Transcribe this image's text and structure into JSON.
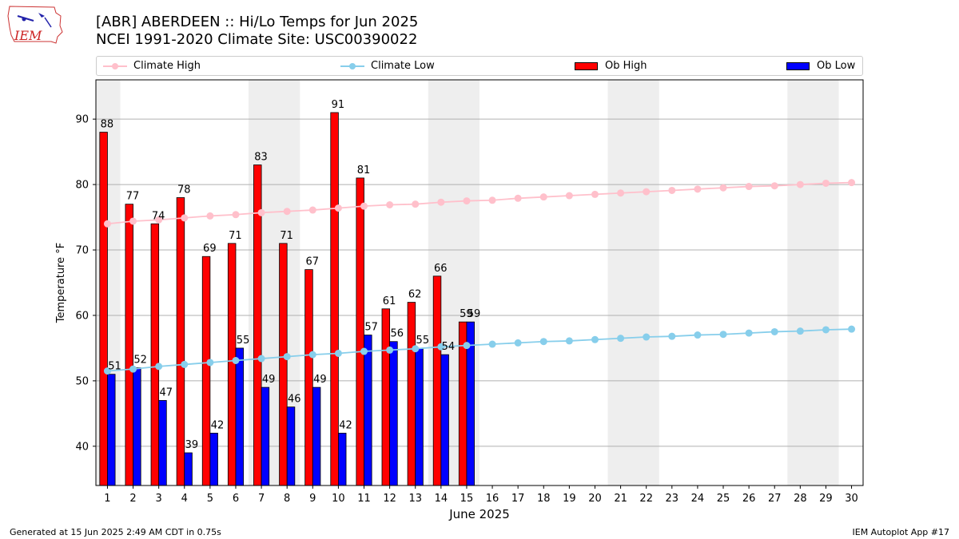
{
  "header": {
    "title_line1": "[ABR] ABERDEEN :: Hi/Lo Temps for Jun 2025",
    "title_line2": "NCEI 1991-2020 Climate Site: USC00390022",
    "logo_text": "IEM"
  },
  "footer": {
    "left": "Generated at 15 Jun 2025 2:49 AM CDT in 0.75s",
    "right": "IEM Autoplot App #17"
  },
  "legend": {
    "climate_high": "Climate High",
    "climate_low": "Climate Low",
    "ob_high": "Ob High",
    "ob_low": "Ob Low"
  },
  "colors": {
    "ob_high": "#ff0000",
    "ob_low": "#0000ff",
    "climate_high": "#ffc0cb",
    "climate_low": "#87ceeb",
    "weekend_band": "#eeeeee",
    "grid": "#b0b0b0"
  },
  "chart_data": {
    "type": "bar",
    "xlabel": "June 2025",
    "ylabel": "Temperature °F",
    "ylim": [
      34,
      96
    ],
    "yticks": [
      40,
      50,
      60,
      70,
      80,
      90
    ],
    "grid": "horizontal",
    "legend_position": "top",
    "days": [
      1,
      2,
      3,
      4,
      5,
      6,
      7,
      8,
      9,
      10,
      11,
      12,
      13,
      14,
      15,
      16,
      17,
      18,
      19,
      20,
      21,
      22,
      23,
      24,
      25,
      26,
      27,
      28,
      29,
      30
    ],
    "weekend_bands": [
      [
        1,
        1
      ],
      [
        7,
        8
      ],
      [
        14,
        15
      ],
      [
        21,
        22
      ],
      [
        28,
        29
      ]
    ],
    "series": [
      {
        "name": "Ob High",
        "type": "bar",
        "values": [
          88,
          77,
          74,
          78,
          69,
          71,
          83,
          71,
          67,
          91,
          81,
          61,
          62,
          66,
          59
        ]
      },
      {
        "name": "Ob Low",
        "type": "bar",
        "values": [
          51,
          52,
          47,
          39,
          42,
          55,
          49,
          46,
          49,
          42,
          57,
          56,
          55,
          54,
          59
        ]
      },
      {
        "name": "Climate High",
        "type": "line",
        "values": [
          74.0,
          74.4,
          74.6,
          74.9,
          75.2,
          75.4,
          75.7,
          75.9,
          76.1,
          76.4,
          76.7,
          76.9,
          77.0,
          77.3,
          77.5,
          77.6,
          77.9,
          78.1,
          78.3,
          78.5,
          78.7,
          78.9,
          79.1,
          79.3,
          79.5,
          79.7,
          79.8,
          80.0,
          80.2,
          80.3
        ]
      },
      {
        "name": "Climate Low",
        "type": "line",
        "values": [
          51.5,
          51.8,
          52.2,
          52.5,
          52.8,
          53.1,
          53.4,
          53.7,
          54.0,
          54.2,
          54.5,
          54.7,
          54.9,
          55.2,
          55.4,
          55.6,
          55.8,
          56.0,
          56.1,
          56.3,
          56.5,
          56.7,
          56.8,
          57.0,
          57.1,
          57.3,
          57.5,
          57.6,
          57.8,
          57.9
        ]
      }
    ]
  }
}
